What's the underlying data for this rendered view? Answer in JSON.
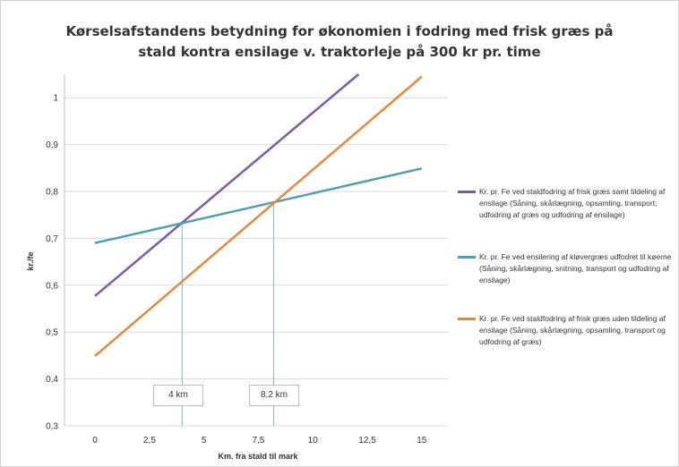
{
  "chart_data": {
    "type": "line",
    "title_lines": [
      "Kørselsafstandens betydning for økonomien i fodring med frisk græs på",
      "stald kontra ensilage v. traktorleje på 300 kr pr. time"
    ],
    "xlabel": "Km. fra stald til mark",
    "ylabel": "kr./fe",
    "xlim": [
      -1.4,
      16.2
    ],
    "ylim": [
      0.3,
      1.05
    ],
    "x_ticks": [
      {
        "value": 0,
        "label": "0"
      },
      {
        "value": 2.5,
        "label": "2,5"
      },
      {
        "value": 5,
        "label": "5"
      },
      {
        "value": 7.5,
        "label": "7,5"
      },
      {
        "value": 10,
        "label": "10"
      },
      {
        "value": 12.5,
        "label": "12,5"
      },
      {
        "value": 15,
        "label": "15"
      }
    ],
    "y_ticks": [
      {
        "value": 0.3,
        "label": "0,3"
      },
      {
        "value": 0.4,
        "label": "0,4"
      },
      {
        "value": 0.5,
        "label": "0,5"
      },
      {
        "value": 0.6,
        "label": "0,6"
      },
      {
        "value": 0.7,
        "label": "0,7"
      },
      {
        "value": 0.8,
        "label": "0,8"
      },
      {
        "value": 0.9,
        "label": "0,9"
      },
      {
        "value": 1,
        "label": "1"
      }
    ],
    "grid": "horizontal",
    "legend_position": "right",
    "series": [
      {
        "name": "Kr. pr. Fe ved staldfodring af frisk græs samt tildeling af ensilage (Såning, skårlægning, opsamling, transport, udfodring af græs og udfodring af ensilage)",
        "color": "#7b5aa6",
        "x": [
          0,
          12.1
        ],
        "y": [
          0.577,
          1.05
        ]
      },
      {
        "name": "Kr. pr. Fe ved ensilering af kløvergræs udfodret til køerne (Såning, skårlægning, snitning, transport og udfodring af ensilage)",
        "color": "#4e9fb3",
        "x": [
          0,
          15
        ],
        "y": [
          0.69,
          0.849
        ]
      },
      {
        "name": "Kr. pr. Fe ved staldfodring af frisk græs uden tildeling af ensilage (Såning, skårlægning, opsamling, transport og udfodring af græs)",
        "color": "#e6883a",
        "x": [
          0,
          15
        ],
        "y": [
          0.449,
          1.045
        ]
      }
    ],
    "annotations": [
      {
        "label": "4 km",
        "x": 4
      },
      {
        "label": "8,2 km",
        "x": 8.2
      }
    ],
    "reference_lines_color": "#7fb7d9"
  }
}
